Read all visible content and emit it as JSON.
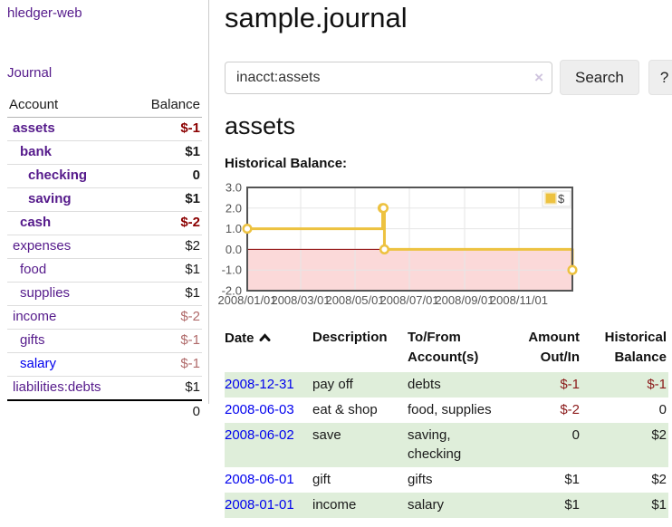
{
  "window": {
    "brand": "hledger-web"
  },
  "sidebar": {
    "journal_link": "Journal",
    "accounts": {
      "header": {
        "account": "Account",
        "balance": "Balance"
      },
      "rows": [
        {
          "name": "assets",
          "balance": "$-1"
        },
        {
          "name": "bank",
          "balance": "$1"
        },
        {
          "name": "checking",
          "balance": "0"
        },
        {
          "name": "saving",
          "balance": "$1"
        },
        {
          "name": "cash",
          "balance": "$-2"
        },
        {
          "name": "expenses",
          "balance": "$2"
        },
        {
          "name": "food",
          "balance": "$1"
        },
        {
          "name": "supplies",
          "balance": "$1"
        },
        {
          "name": "income",
          "balance": "$-2"
        },
        {
          "name": "gifts",
          "balance": "$-1"
        },
        {
          "name": "salary",
          "balance": "$-1"
        },
        {
          "name": "liabilities:debts",
          "balance": "$1"
        }
      ],
      "total": "0"
    }
  },
  "header": {
    "title": "sample.journal"
  },
  "search": {
    "value": "inacct:assets",
    "clear_icon": "×",
    "search_button": "Search",
    "help_button": "?"
  },
  "account_page": {
    "heading": "assets",
    "chart_title": "Historical Balance:"
  },
  "chart_data": {
    "type": "line",
    "title": "Historical Balance:",
    "x_range": [
      "2008-01-01",
      "2008-12-31"
    ],
    "ylim": [
      -2,
      3
    ],
    "grid": true,
    "legend": {
      "label": "$",
      "position": "top-right"
    },
    "y_ticks": [
      {
        "label": "3.0",
        "value": 3
      },
      {
        "label": "2.0",
        "value": 2
      },
      {
        "label": "1.0",
        "value": 1
      },
      {
        "label": "0.0",
        "value": 0
      },
      {
        "label": "-1.0",
        "value": -1
      },
      {
        "label": "-2.0",
        "value": -2
      }
    ],
    "x_ticks": [
      {
        "label": "2008/01/01",
        "date": "2008-01-01"
      },
      {
        "label": "2008/03/01",
        "date": "2008-03-01"
      },
      {
        "label": "2008/05/01",
        "date": "2008-05-01"
      },
      {
        "label": "2008/07/01",
        "date": "2008-07-01"
      },
      {
        "label": "2008/09/01",
        "date": "2008-09-01"
      },
      {
        "label": "2008/11/01",
        "date": "2008-11-01"
      }
    ],
    "series": [
      {
        "name": "$",
        "color": "#edc240",
        "steps": true,
        "points": [
          {
            "date": "2008-01-01",
            "value": 1
          },
          {
            "date": "2008-06-01",
            "value": 2
          },
          {
            "date": "2008-06-02",
            "value": 2
          },
          {
            "date": "2008-06-03",
            "value": 0
          },
          {
            "date": "2008-12-31",
            "value": -1
          }
        ]
      }
    ],
    "negative_region_color": "#fbd9d9",
    "zero_line_color": "#8b0000",
    "grid_color": "#e6e6e6",
    "border_color": "#545454",
    "axis_label_color": "#545454"
  },
  "register": {
    "headers": {
      "date": {
        "l1": "Date",
        "l2": ""
      },
      "description": {
        "l1": "Description",
        "l2": ""
      },
      "accounts": {
        "l1": "To/From",
        "l2": "Account(s)"
      },
      "amount": {
        "l1": "Amount",
        "l2": "Out/In"
      },
      "balance": {
        "l1": "Historical",
        "l2": "Balance"
      }
    },
    "rows": [
      {
        "date": "2008-12-31",
        "description": "pay off",
        "accounts": "debts",
        "amount": "$-1",
        "balance": "$-1"
      },
      {
        "date": "2008-06-03",
        "description": "eat & shop",
        "accounts": "food, supplies",
        "amount": "$-2",
        "balance": "0"
      },
      {
        "date": "2008-06-02",
        "description": "save",
        "accounts": "saving, checking",
        "amount": "0",
        "balance": "$2"
      },
      {
        "date": "2008-06-01",
        "description": "gift",
        "accounts": "gifts",
        "amount": "$1",
        "balance": "$2"
      },
      {
        "date": "2008-01-01",
        "description": "income",
        "accounts": "salary",
        "amount": "$1",
        "balance": "$1"
      }
    ]
  },
  "theme": {
    "link_purple": "#551a8b",
    "link_blue": "#0000ee",
    "negative_strong": "#8b0000",
    "negative_muted": "#b06a6a",
    "negative_table": "#8b1a1a",
    "row_stripe_green": "#dfeeda",
    "series_gold": "#edc240"
  }
}
